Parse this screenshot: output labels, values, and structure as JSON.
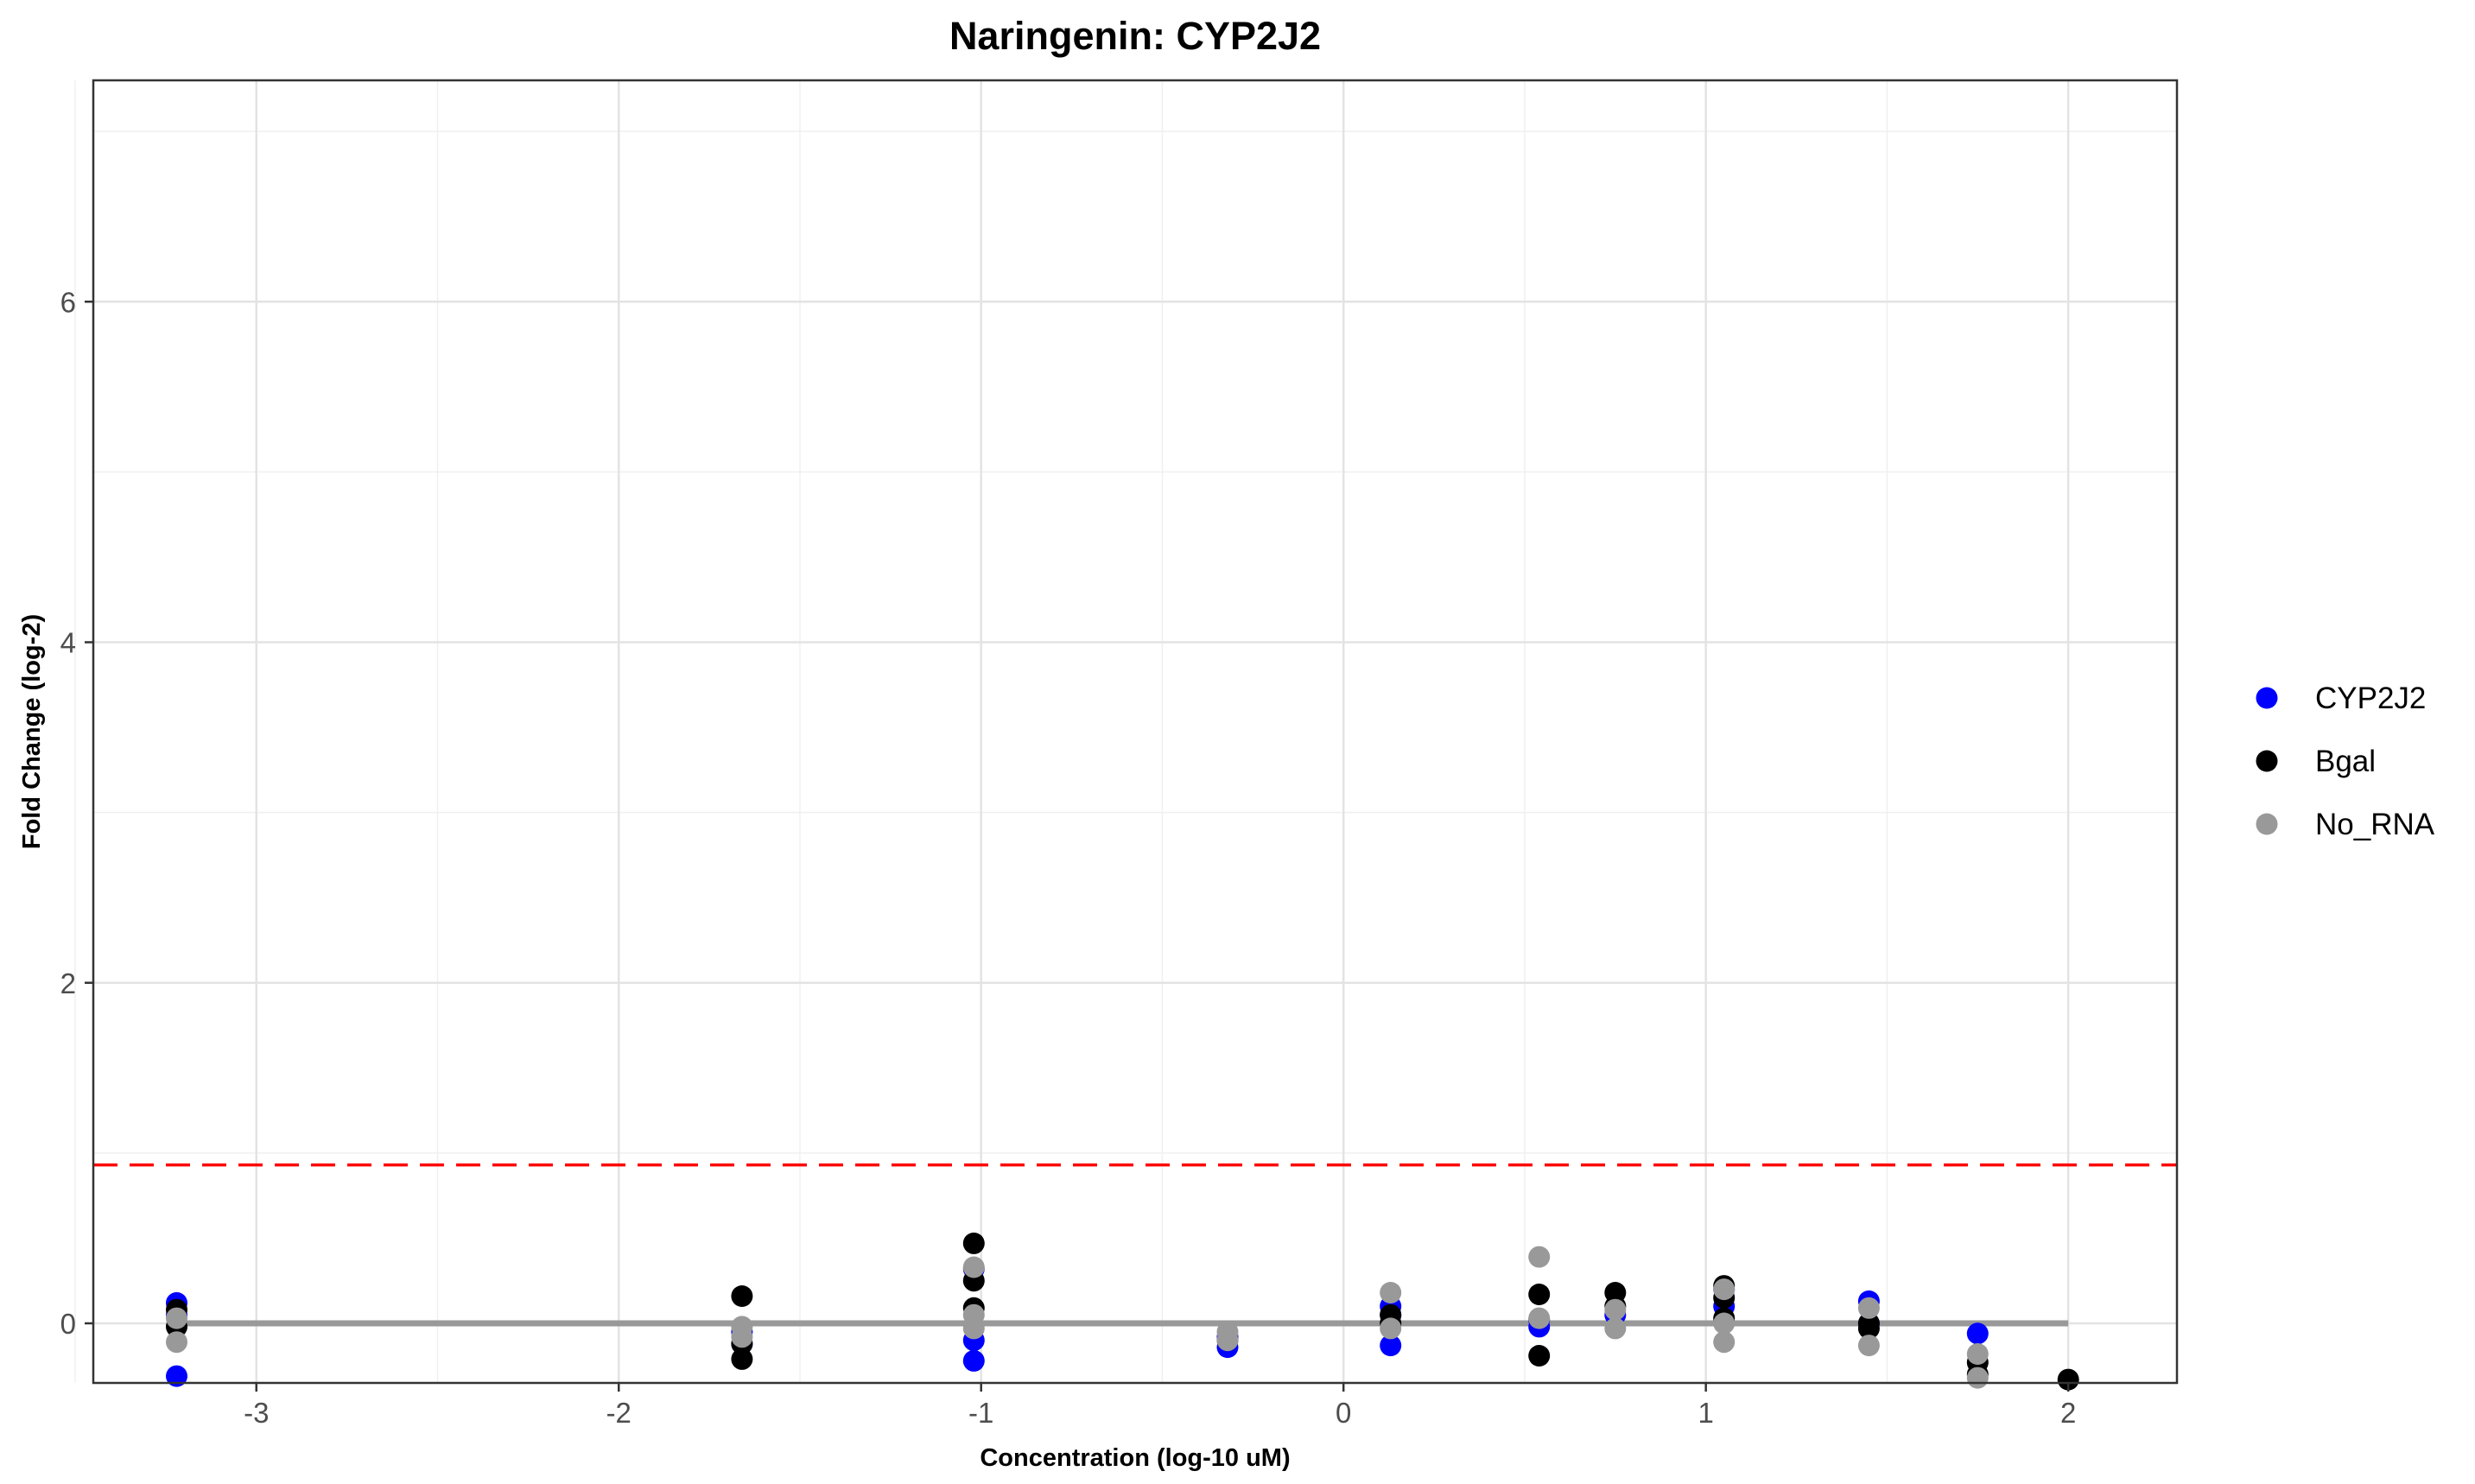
{
  "chart_data": {
    "type": "scatter",
    "title": "Naringenin: CYP2J2",
    "xlabel": "Concentration (log-10 uM)",
    "ylabel": "Fold Change (log-2)",
    "xlim": [
      -3.45,
      2.3
    ],
    "ylim": [
      -0.35,
      7.3
    ],
    "x_ticks": [
      -3,
      -2,
      -1,
      0,
      1,
      2
    ],
    "x_tick_labels": [
      "-3",
      "-2",
      "-1",
      "0",
      "1",
      "2"
    ],
    "y_ticks": [
      0,
      2,
      4,
      6
    ],
    "y_tick_labels": [
      "0",
      "2",
      "4",
      "6"
    ],
    "grid": true,
    "legend_position": "right",
    "threshold_line": {
      "y": 0.93,
      "color": "#ff0000",
      "style": "dashed"
    },
    "fit_line": {
      "x": [
        -3.22,
        2.0
      ],
      "y": [
        0,
        0
      ],
      "color": "#999999"
    },
    "series": [
      {
        "name": "CYP2J2",
        "color": "#0000ff",
        "points": [
          [
            -3.22,
            0.12
          ],
          [
            -3.22,
            0.05
          ],
          [
            -3.22,
            -0.31
          ],
          [
            -1.66,
            -0.05
          ],
          [
            -1.66,
            -0.12
          ],
          [
            -1.02,
            -0.1
          ],
          [
            -1.02,
            -0.22
          ],
          [
            -1.02,
            0.32
          ],
          [
            -0.32,
            -0.14
          ],
          [
            -0.32,
            -0.08
          ],
          [
            0.13,
            0.1
          ],
          [
            0.13,
            -0.13
          ],
          [
            0.13,
            0.05
          ],
          [
            0.54,
            0.02
          ],
          [
            0.54,
            -0.02
          ],
          [
            0.75,
            0.05
          ],
          [
            1.05,
            0.1
          ],
          [
            1.05,
            0.2
          ],
          [
            1.45,
            0.13
          ],
          [
            1.45,
            0.0
          ],
          [
            1.75,
            -0.06
          ]
        ]
      },
      {
        "name": "Bgal",
        "color": "#000000",
        "points": [
          [
            -3.22,
            0.08
          ],
          [
            -3.22,
            -0.02
          ],
          [
            -1.66,
            0.16
          ],
          [
            -1.66,
            -0.21
          ],
          [
            -1.66,
            -0.12
          ],
          [
            -1.02,
            0.47
          ],
          [
            -1.02,
            0.25
          ],
          [
            -1.02,
            0.09
          ],
          [
            -0.32,
            -0.1
          ],
          [
            0.13,
            0.05
          ],
          [
            0.13,
            0.0
          ],
          [
            0.54,
            0.17
          ],
          [
            0.54,
            -0.19
          ],
          [
            0.75,
            0.18
          ],
          [
            0.75,
            0.1
          ],
          [
            1.05,
            0.22
          ],
          [
            1.05,
            0.15
          ],
          [
            1.05,
            0.03
          ],
          [
            1.45,
            0.0
          ],
          [
            1.45,
            -0.03
          ],
          [
            1.75,
            -0.23
          ],
          [
            1.75,
            -0.3
          ],
          [
            2.0,
            -0.33
          ]
        ]
      },
      {
        "name": "No_RNA",
        "color": "#999999",
        "points": [
          [
            -3.22,
            0.03
          ],
          [
            -3.22,
            -0.11
          ],
          [
            -1.66,
            -0.02
          ],
          [
            -1.66,
            -0.08
          ],
          [
            -1.02,
            0.33
          ],
          [
            -1.02,
            0.05
          ],
          [
            -1.02,
            -0.03
          ],
          [
            -0.32,
            -0.05
          ],
          [
            -0.32,
            -0.1
          ],
          [
            0.13,
            0.18
          ],
          [
            0.13,
            -0.03
          ],
          [
            0.54,
            0.39
          ],
          [
            0.54,
            0.03
          ],
          [
            0.75,
            0.08
          ],
          [
            0.75,
            -0.03
          ],
          [
            1.05,
            0.2
          ],
          [
            1.05,
            -0.11
          ],
          [
            1.05,
            0.0
          ],
          [
            1.45,
            0.09
          ],
          [
            1.45,
            -0.13
          ],
          [
            1.75,
            -0.18
          ],
          [
            1.75,
            -0.32
          ]
        ]
      }
    ]
  }
}
